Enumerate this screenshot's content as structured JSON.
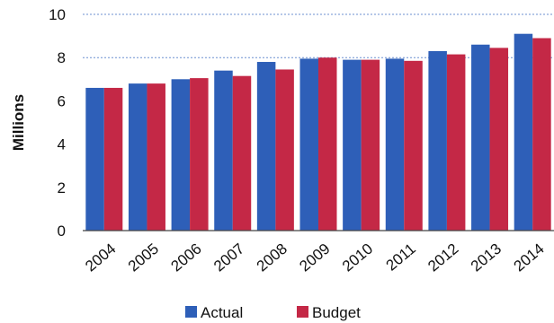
{
  "chart_data": {
    "type": "bar",
    "title": "",
    "xlabel": "",
    "ylabel": "Millions",
    "ylim": [
      0,
      10
    ],
    "yticks": [
      0,
      2,
      4,
      6,
      8,
      10
    ],
    "categories": [
      "2004",
      "2005",
      "2006",
      "2007",
      "2008",
      "2009",
      "2010",
      "2011",
      "2012",
      "2013",
      "2014"
    ],
    "series": [
      {
        "name": "Actual",
        "color": "#2e5fb8",
        "values": [
          6.6,
          6.8,
          7.0,
          7.4,
          7.8,
          7.95,
          7.9,
          7.95,
          8.3,
          8.6,
          9.1
        ]
      },
      {
        "name": "Budget",
        "color": "#c42846",
        "values": [
          6.6,
          6.8,
          7.05,
          7.15,
          7.45,
          8.0,
          7.9,
          7.85,
          8.15,
          8.45,
          8.9
        ]
      }
    ],
    "grid": "dotted horizontal at 8 and 10",
    "legend_position": "bottom"
  }
}
